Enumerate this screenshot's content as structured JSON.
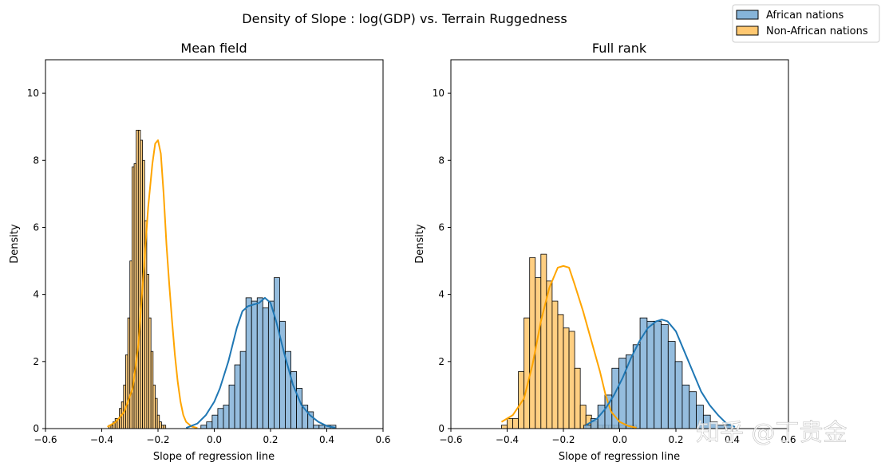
{
  "figure": {
    "suptitle": "Density of Slope : log(GDP) vs. Terrain Ruggedness",
    "watermark": "知乎 @丁贵金"
  },
  "legend": {
    "placement": "top-right",
    "entries": [
      {
        "label": "African nations",
        "color": "#1f77b4"
      },
      {
        "label": "Non-African nations",
        "color": "#ffa500"
      }
    ]
  },
  "colors": {
    "african_fill": "#86b4d9",
    "african_line": "#1f77b4",
    "non_african_fill": "#ffc871",
    "non_african_line": "#ffa500"
  },
  "chart_data": [
    {
      "type": "histogram",
      "title": "Mean field",
      "xlabel": "Slope of regression line",
      "ylabel": "Density",
      "xlim": [
        -0.6,
        0.6
      ],
      "ylim": [
        0,
        11
      ],
      "xticks": [
        "−0.6",
        "−0.4",
        "−0.2",
        "0.0",
        "0.2",
        "0.4",
        "0.6"
      ],
      "yticks": [
        "0",
        "2",
        "4",
        "6",
        "8",
        "10"
      ],
      "grid": false,
      "series": [
        {
          "name": "Non-African nations",
          "bin_start": -0.375,
          "bin_width": 0.0075,
          "values": [
            0.1,
            0.1,
            0.2,
            0.3,
            0.3,
            0.6,
            0.8,
            1.3,
            2.2,
            3.3,
            5.0,
            7.8,
            7.9,
            8.9,
            8.9,
            8.6,
            8.0,
            6.2,
            4.6,
            3.3,
            2.3,
            1.3,
            0.9,
            0.4,
            0.2,
            0.1,
            0.1
          ],
          "kde_x": [
            -0.38,
            -0.35,
            -0.32,
            -0.29,
            -0.27,
            -0.25,
            -0.235,
            -0.22,
            -0.21,
            -0.2,
            -0.19,
            -0.18,
            -0.17,
            -0.16,
            -0.15,
            -0.14,
            -0.13,
            -0.12,
            -0.11,
            -0.1,
            -0.08,
            -0.06
          ],
          "kde_y": [
            0.05,
            0.2,
            0.5,
            1.2,
            2.5,
            4.8,
            6.6,
            7.9,
            8.5,
            8.6,
            8.2,
            7.0,
            5.5,
            4.3,
            3.2,
            2.2,
            1.4,
            0.8,
            0.4,
            0.2,
            0.06,
            0.02
          ]
        },
        {
          "name": "African nations",
          "bin_start": -0.0475,
          "bin_width": 0.02,
          "values": [
            0.1,
            0.2,
            0.4,
            0.6,
            0.7,
            1.3,
            1.9,
            2.3,
            3.9,
            3.8,
            3.9,
            3.6,
            3.8,
            4.5,
            3.2,
            2.3,
            1.7,
            1.2,
            0.7,
            0.5,
            0.1,
            0.1,
            0.1,
            0.1
          ],
          "kde_x": [
            -0.1,
            -0.06,
            -0.03,
            0.0,
            0.02,
            0.05,
            0.08,
            0.1,
            0.12,
            0.14,
            0.16,
            0.18,
            0.2,
            0.22,
            0.25,
            0.28,
            0.31,
            0.34,
            0.37,
            0.4,
            0.43
          ],
          "kde_y": [
            0.02,
            0.15,
            0.4,
            0.8,
            1.2,
            2.0,
            3.0,
            3.5,
            3.65,
            3.7,
            3.75,
            3.9,
            3.75,
            3.2,
            2.2,
            1.3,
            0.7,
            0.4,
            0.2,
            0.08,
            0.02
          ]
        }
      ]
    },
    {
      "type": "histogram",
      "title": "Full rank",
      "xlabel": "Slope of regression line",
      "ylabel": "Density",
      "xlim": [
        -0.6,
        0.6
      ],
      "ylim": [
        0,
        11
      ],
      "xticks": [
        "−0.6",
        "−0.4",
        "−0.2",
        "0.0",
        "0.2",
        "0.4",
        "0.6"
      ],
      "yticks": [
        "0",
        "2",
        "4",
        "6",
        "8",
        "10"
      ],
      "grid": false,
      "series": [
        {
          "name": "Non-African nations",
          "bin_start": -0.42,
          "bin_width": 0.02,
          "values": [
            0.1,
            0.3,
            0.3,
            1.7,
            3.3,
            5.1,
            4.5,
            5.2,
            4.4,
            3.8,
            3.4,
            3.0,
            2.9,
            1.8,
            0.7,
            0.4,
            0.2,
            0.1,
            0.1,
            0.1,
            0.1,
            0.1,
            0.1,
            0.1
          ],
          "kde_x": [
            -0.42,
            -0.38,
            -0.34,
            -0.31,
            -0.28,
            -0.25,
            -0.22,
            -0.2,
            -0.18,
            -0.16,
            -0.13,
            -0.1,
            -0.07,
            -0.05,
            -0.03,
            0.0,
            0.03,
            0.06
          ],
          "kde_y": [
            0.2,
            0.4,
            0.9,
            1.9,
            3.2,
            4.2,
            4.8,
            4.85,
            4.8,
            4.3,
            3.5,
            2.6,
            1.7,
            1.0,
            0.5,
            0.2,
            0.08,
            0.02
          ]
        },
        {
          "name": "African nations",
          "bin_start": -0.1275,
          "bin_width": 0.025,
          "values": [
            0.1,
            0.3,
            0.7,
            1.0,
            1.8,
            2.1,
            2.2,
            2.5,
            3.3,
            3.2,
            3.2,
            3.1,
            2.6,
            2.0,
            1.3,
            1.1,
            0.7,
            0.4,
            0.2,
            0.1,
            0.1
          ],
          "kde_x": [
            -0.12,
            -0.08,
            -0.05,
            -0.02,
            0.01,
            0.04,
            0.07,
            0.1,
            0.13,
            0.15,
            0.17,
            0.2,
            0.23,
            0.26,
            0.29,
            0.32,
            0.35,
            0.38,
            0.41
          ],
          "kde_y": [
            0.1,
            0.3,
            0.6,
            1.0,
            1.5,
            2.1,
            2.6,
            3.0,
            3.2,
            3.25,
            3.2,
            2.9,
            2.3,
            1.7,
            1.1,
            0.7,
            0.4,
            0.15,
            0.05
          ]
        }
      ]
    }
  ]
}
